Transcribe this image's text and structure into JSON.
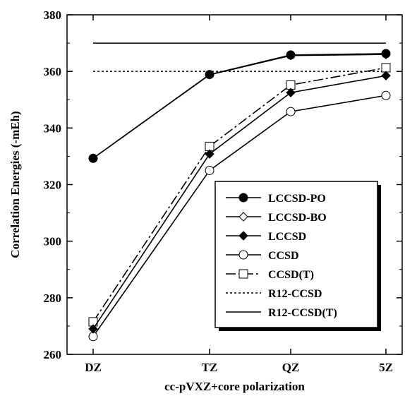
{
  "chart_data": {
    "type": "line",
    "categories": [
      "DZ",
      "TZ",
      "QZ",
      "5Z"
    ],
    "xlabel": "cc-pVXZ+core polarization",
    "ylabel": "Correlation Energies (-mEh)",
    "ylim": [
      260,
      380
    ],
    "yticks": [
      260,
      280,
      300,
      320,
      340,
      360,
      380
    ],
    "grid": false,
    "legend_position": "bottom-right",
    "series": [
      {
        "name": "LCCSD-PO",
        "marker": "filled-circle",
        "dash": "solid",
        "values": [
          329.3,
          358.9,
          365.8,
          366.3
        ]
      },
      {
        "name": "LCCSD-BO",
        "marker": "open-diamond",
        "dash": "solid",
        "values": [
          329.3,
          358.8,
          365.6,
          366.0
        ]
      },
      {
        "name": "LCCSD",
        "marker": "filled-diamond",
        "dash": "solid",
        "values": [
          269.0,
          330.8,
          352.5,
          358.5
        ]
      },
      {
        "name": "CCSD",
        "marker": "open-circle",
        "dash": "solid",
        "values": [
          266.3,
          325.0,
          345.8,
          351.5
        ]
      },
      {
        "name": "CCSD(T)",
        "marker": "open-square",
        "dash": "dashdot",
        "values": [
          271.5,
          333.5,
          355.2,
          361.3
        ]
      },
      {
        "name": "R12-CCSD",
        "marker": "none",
        "dash": "dotted",
        "constant": 360.0
      },
      {
        "name": "R12-CCSD(T)",
        "marker": "none",
        "dash": "solid",
        "constant": 370.0
      }
    ]
  }
}
